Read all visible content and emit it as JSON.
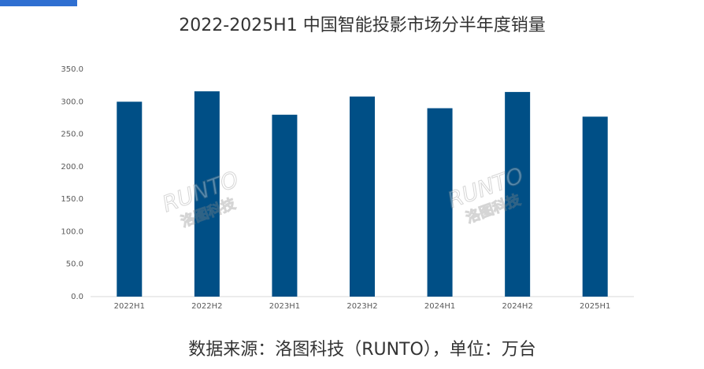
{
  "chart_data": {
    "type": "bar",
    "title": "2022-2025H1 中国智能投影市场分半年度销量",
    "categories": [
      "2022H1",
      "2022H2",
      "2023H1",
      "2023H2",
      "2024H1",
      "2024H2",
      "2025H1"
    ],
    "values": [
      300,
      316,
      280,
      308,
      290,
      315,
      277
    ],
    "color": "#004f86",
    "ylim": [
      0,
      350
    ],
    "yticks": [
      {
        "value": 0,
        "label": "0.0"
      },
      {
        "value": 50,
        "label": "50.0"
      },
      {
        "value": 100,
        "label": "100.0"
      },
      {
        "value": 150,
        "label": "150.0"
      },
      {
        "value": 200,
        "label": "200.0"
      },
      {
        "value": 250,
        "label": "250.0"
      },
      {
        "value": 300,
        "label": "300.0"
      },
      {
        "value": 350,
        "label": "350.0"
      }
    ],
    "grid": false,
    "watermark": {
      "brand": "RUNTO",
      "name": "洛图科技"
    },
    "source": "数据来源：洛图科技（RUNTO），单位：万台"
  }
}
